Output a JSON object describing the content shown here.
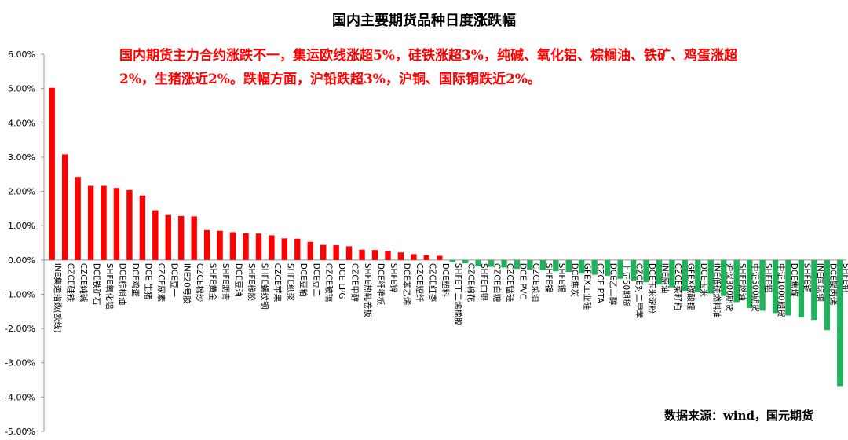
{
  "title": "国内主要期货品种日度涨跌幅",
  "annotation": {
    "line1": "国内期货主力合约涨跌不一，集运欧线涨超5%，硅铁涨超3%，纯碱、氧化铝、棕榈油、铁矿、鸡蛋涨超",
    "line2": "2%，生猪涨近2%。跌幅方面，沪铅跌超3%，沪铜、国际铜跌近2%。"
  },
  "source": "数据来源：wind，国元期货",
  "colors": {
    "up": "#ff0000",
    "down": "#21b35b",
    "axis": "#999999"
  },
  "chart_data": {
    "type": "bar",
    "title": "国内主要期货品种日度涨跌幅",
    "xlabel": "",
    "ylabel": "",
    "ylim": [
      -5,
      6
    ],
    "yticks": [
      "6.00%",
      "5.00%",
      "4.00%",
      "3.00%",
      "2.00%",
      "1.00%",
      "0.00%",
      "-1.00%",
      "-2.00%",
      "-3.00%",
      "-4.00%",
      "-5.00%"
    ],
    "grid": false,
    "categories": [
      "INE集运指数(欧线)",
      "CZCE硅铁",
      "CZCE纯碱",
      "DCE铁矿石",
      "SHFE氧化铝",
      "DCE棕榈油",
      "DCE鸡蛋",
      "DCE 生猪",
      "CZCE尿素",
      "DCE豆一",
      "INE20号胶",
      "CZCE棉纱",
      "SHFE黄金",
      "SHFE沥青",
      "DCE豆油",
      "SHFE橡胶",
      "SHFE螺纹钢",
      "CZCE苹果",
      "SHFE纸浆",
      "DCE豆粕",
      "DCE豆二",
      "CZCE玻璃",
      "DCE LPG",
      "CZCE甲醇",
      "SHFE热轧卷板",
      "DCE纤维板",
      "SHFE锌",
      "DCE苯乙烯",
      "CZCE短纤",
      "CZCE红枣",
      "DCE塑料",
      "SHFE丁二烯橡胶",
      "CZCE棉花",
      "SHFE白银",
      "CZCE白糖",
      "CZCE锰硅",
      "DCE PVC",
      "CZCE菜油",
      "SHFE镍",
      "SHFE锡",
      "DCE焦炭",
      "GFEX工业硅",
      "CZCE PTA",
      "DCE乙二醇",
      "上证50期货",
      "CZCE对二甲苯",
      "DCE玉米淀粉",
      "INE原油",
      "CZCE菜籽粕",
      "GFEX碳酸锂",
      "DCE玉米",
      "INE低硫燃料油",
      "沪深300期货",
      "SHFE燃油",
      "中证500期货",
      "SHFE铝",
      "中证1000期货",
      "DCE焦煤",
      "SHFE铜",
      "INE国际铜",
      "DCE聚丙烯",
      "SHFE铅"
    ],
    "values": [
      5.02,
      3.08,
      2.42,
      2.16,
      2.16,
      2.1,
      2.04,
      1.88,
      1.45,
      1.31,
      1.28,
      1.27,
      0.87,
      0.85,
      0.81,
      0.78,
      0.77,
      0.72,
      0.63,
      0.62,
      0.53,
      0.44,
      0.43,
      0.4,
      0.3,
      0.29,
      0.26,
      0.22,
      0.17,
      0.14,
      0.12,
      -0.06,
      -0.1,
      -0.18,
      -0.2,
      -0.22,
      -0.26,
      -0.28,
      -0.3,
      -0.33,
      -0.35,
      -0.4,
      -0.43,
      -0.46,
      -0.55,
      -0.6,
      -0.65,
      -0.72,
      -0.8,
      -0.9,
      -0.93,
      -0.98,
      -1.05,
      -1.23,
      -1.4,
      -1.48,
      -1.55,
      -1.62,
      -1.68,
      -1.75,
      -2.05,
      -3.68
    ]
  }
}
